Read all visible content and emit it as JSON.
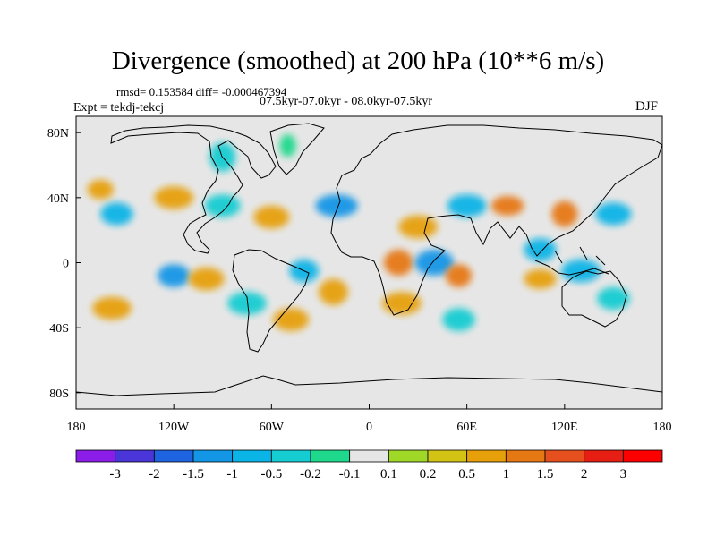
{
  "header": {
    "title": "Divergence (smoothed) at 200 hPa (10**6 m/s)",
    "stats": "rmsd= 0.153584 diff= -0.000467394",
    "subtitle": "07.5kyr-07.0kyr - 08.0kyr-07.5kyr",
    "experiment": "Expt = tekdj-tekcj",
    "season": "DJF"
  },
  "chart_data": {
    "type": "heatmap",
    "title": "Divergence (smoothed) at 200 hPa (10**6 m/s)",
    "projection": "cylindrical equidistant",
    "xlim": [
      -180,
      180
    ],
    "ylim": [
      -90,
      90
    ],
    "x_ticks": [
      {
        "value": -180,
        "label": "180"
      },
      {
        "value": -120,
        "label": "120W"
      },
      {
        "value": -60,
        "label": "60W"
      },
      {
        "value": 0,
        "label": "0"
      },
      {
        "value": 60,
        "label": "60E"
      },
      {
        "value": 120,
        "label": "120E"
      },
      {
        "value": 180,
        "label": "180"
      }
    ],
    "y_ticks": [
      {
        "value": 80,
        "label": "80N"
      },
      {
        "value": 40,
        "label": "40N"
      },
      {
        "value": 0,
        "label": "0"
      },
      {
        "value": -40,
        "label": "40S"
      },
      {
        "value": -80,
        "label": "80S"
      }
    ],
    "colorbar": {
      "labels": [
        "-3",
        "-2",
        "-1.5",
        "-1",
        "-0.5",
        "-0.2",
        "-0.1",
        "0.1",
        "0.2",
        "0.5",
        "1",
        "1.5",
        "2",
        "3"
      ],
      "colors": [
        "#8a1ee8",
        "#4a35d8",
        "#1e64e0",
        "#1496e6",
        "#0ab4e6",
        "#14ccd2",
        "#1ed98c",
        "#e6e6e6",
        "#a0d828",
        "#d2c314",
        "#e6a00a",
        "#e67814",
        "#e6501e",
        "#e61e14",
        "#fa0000"
      ]
    },
    "anomalies": [
      {
        "lon": -145,
        "lat": -12,
        "class": 7,
        "sx": 16,
        "sy": 6
      },
      {
        "lon": -158,
        "lat": -28,
        "class": 10,
        "sx": 12,
        "sy": 7
      },
      {
        "lon": -120,
        "lat": -8,
        "class": 3,
        "sx": 10,
        "sy": 7
      },
      {
        "lon": -100,
        "lat": -10,
        "class": 10,
        "sx": 11,
        "sy": 7
      },
      {
        "lon": -75,
        "lat": -25,
        "class": 5,
        "sx": 12,
        "sy": 7
      },
      {
        "lon": -40,
        "lat": -5,
        "class": 4,
        "sx": 9,
        "sy": 7
      },
      {
        "lon": -48,
        "lat": -35,
        "class": 10,
        "sx": 11,
        "sy": 7
      },
      {
        "lon": -22,
        "lat": -18,
        "class": 10,
        "sx": 9,
        "sy": 8
      },
      {
        "lon": 18,
        "lat": 0,
        "class": 11,
        "sx": 9,
        "sy": 8
      },
      {
        "lon": 40,
        "lat": 0,
        "class": 3,
        "sx": 12,
        "sy": 8
      },
      {
        "lon": 55,
        "lat": -8,
        "class": 11,
        "sx": 8,
        "sy": 7
      },
      {
        "lon": 20,
        "lat": -25,
        "class": 10,
        "sx": 12,
        "sy": 7
      },
      {
        "lon": 55,
        "lat": -35,
        "class": 5,
        "sx": 10,
        "sy": 7
      },
      {
        "lon": 105,
        "lat": 8,
        "class": 4,
        "sx": 10,
        "sy": 7
      },
      {
        "lon": 105,
        "lat": -10,
        "class": 10,
        "sx": 10,
        "sy": 6
      },
      {
        "lon": 130,
        "lat": -5,
        "class": 4,
        "sx": 12,
        "sy": 7
      },
      {
        "lon": 150,
        "lat": -22,
        "class": 5,
        "sx": 10,
        "sy": 7
      },
      {
        "lon": 120,
        "lat": 30,
        "class": 11,
        "sx": 8,
        "sy": 8
      },
      {
        "lon": 150,
        "lat": 30,
        "class": 4,
        "sx": 11,
        "sy": 7
      },
      {
        "lon": -20,
        "lat": 35,
        "class": 3,
        "sx": 13,
        "sy": 7
      },
      {
        "lon": -120,
        "lat": 40,
        "class": 10,
        "sx": 12,
        "sy": 7
      },
      {
        "lon": -90,
        "lat": 35,
        "class": 5,
        "sx": 11,
        "sy": 7
      },
      {
        "lon": -60,
        "lat": 28,
        "class": 10,
        "sx": 11,
        "sy": 7
      },
      {
        "lon": -155,
        "lat": 30,
        "class": 4,
        "sx": 10,
        "sy": 7
      },
      {
        "lon": -165,
        "lat": 45,
        "class": 10,
        "sx": 8,
        "sy": 6
      },
      {
        "lon": -90,
        "lat": 65,
        "class": 5,
        "sx": 8,
        "sy": 9
      },
      {
        "lon": -50,
        "lat": 72,
        "class": 6,
        "sx": 5,
        "sy": 7
      },
      {
        "lon": 30,
        "lat": 22,
        "class": 10,
        "sx": 12,
        "sy": 7
      },
      {
        "lon": 60,
        "lat": 35,
        "class": 4,
        "sx": 12,
        "sy": 7
      },
      {
        "lon": 85,
        "lat": 35,
        "class": 11,
        "sx": 10,
        "sy": 6
      }
    ]
  }
}
